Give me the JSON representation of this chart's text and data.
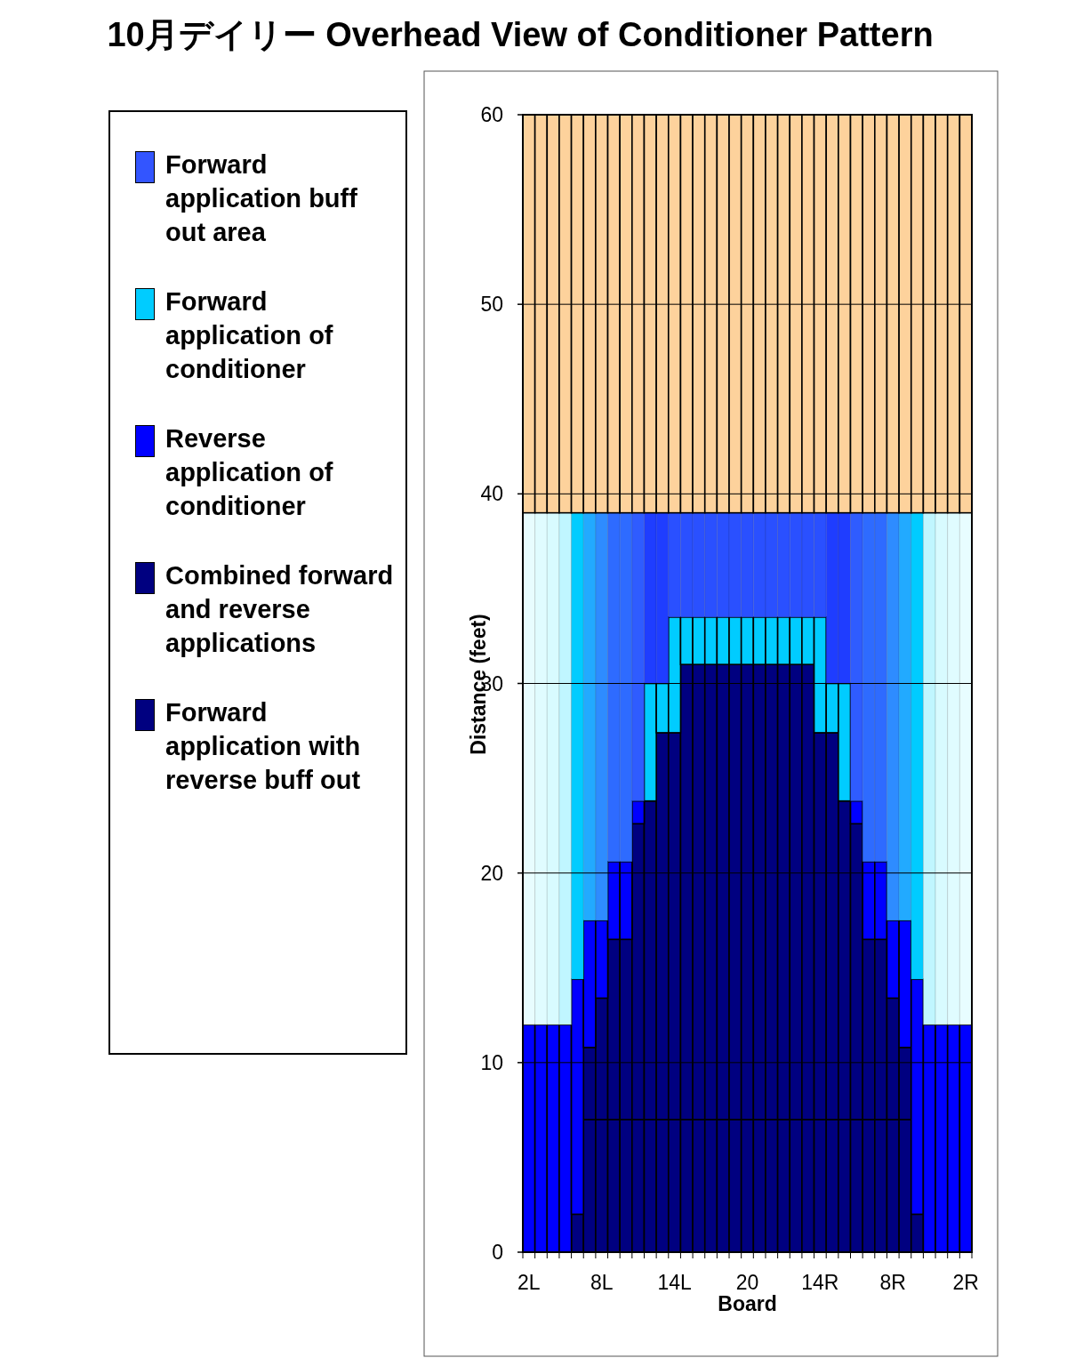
{
  "chart_data": {
    "type": "bar",
    "title": "10月デイリー Overhead View of Conditioner Pattern",
    "xlabel": "Board",
    "ylabel": "Distance (feet)",
    "stacked": true,
    "legend": "left",
    "grid": "y",
    "categories": [
      "2L",
      null,
      null,
      null,
      null,
      null,
      "8L",
      null,
      null,
      null,
      null,
      null,
      "14L",
      null,
      null,
      null,
      null,
      null,
      "20",
      null,
      null,
      null,
      null,
      null,
      "14R",
      null,
      null,
      null,
      null,
      null,
      "8R",
      null,
      null,
      null,
      null,
      null,
      "2R"
    ],
    "ylim": [
      0,
      60
    ],
    "yticks": [
      0,
      10,
      20,
      30,
      40,
      50,
      60
    ],
    "series": [
      {
        "name": "Forward application with reverse buff out",
        "color": "#000080",
        "values": [
          0,
          0,
          0,
          0,
          2,
          7,
          7,
          7,
          7,
          7,
          7,
          7,
          7,
          7,
          7,
          7,
          7,
          7,
          7,
          7,
          7,
          7,
          7,
          7,
          7,
          7,
          7,
          7,
          7,
          7,
          7,
          7,
          2,
          0,
          0,
          0,
          0
        ]
      },
      {
        "name": "Combined forward and reverse applications",
        "color": "#000080",
        "values": [
          0,
          0,
          0,
          0,
          0,
          3.8,
          6.4,
          9.5,
          9.5,
          15.6,
          16.8,
          20.4,
          20.4,
          24,
          24,
          24,
          24,
          24,
          24,
          24,
          24,
          24,
          24,
          24,
          20.4,
          20.4,
          16.8,
          15.6,
          9.5,
          9.5,
          6.4,
          3.8,
          0,
          0,
          0,
          0,
          0
        ]
      },
      {
        "name": "Reverse application of conditioner",
        "color": "#0000ff",
        "values": [
          12,
          12,
          12,
          12,
          12.4,
          6.7,
          4.1,
          4.1,
          4.1,
          1.2,
          0,
          0,
          0,
          0,
          0,
          0,
          0,
          0,
          0,
          0,
          0,
          0,
          0,
          0,
          0,
          0,
          0,
          1.2,
          4.1,
          4.1,
          4.1,
          6.7,
          12.4,
          12,
          12,
          12,
          12
        ]
      },
      {
        "name": "Forward application of conditioner",
        "color": "#00ccff",
        "values": [
          0,
          0,
          0,
          0,
          0,
          0,
          0,
          0,
          0,
          0,
          6.2,
          2.6,
          6.1,
          2.5,
          2.5,
          2.5,
          2.5,
          2.5,
          2.5,
          2.5,
          2.5,
          2.5,
          2.5,
          2.5,
          6.1,
          2.6,
          6.2,
          0,
          0,
          0,
          0,
          0,
          0,
          0,
          0,
          0,
          0
        ]
      },
      {
        "name": "Forward application buff out area",
        "color": "#3355ff",
        "colors": [
          "#e8fdff",
          "#e0fcff",
          "#d8fbff",
          "#c0f6ff",
          "#00ccff",
          "#22aaff",
          "#2e8cff",
          "#2e6bff",
          "#2e6bff",
          "#2f5cff",
          "#1f3dff",
          "#1f3dff",
          "#2a50ff",
          "#2a50ff",
          "#2a50ff",
          "#2a50ff",
          "#2a50ff",
          "#2a50ff",
          "#2a50ff",
          "#2a50ff",
          "#2a50ff",
          "#2a50ff",
          "#2a50ff",
          "#2a50ff",
          "#2a50ff",
          "#1f3dff",
          "#1f3dff",
          "#2f5cff",
          "#2e6bff",
          "#2e6bff",
          "#2e8cff",
          "#22aaff",
          "#00ccff",
          "#c0f6ff",
          "#d8fbff",
          "#e0fcff",
          "#e8fdff"
        ],
        "values": [
          27,
          27,
          27,
          27,
          24.6,
          21.5,
          21.5,
          18.4,
          18.4,
          15.2,
          9,
          9,
          5.5,
          5.5,
          5.5,
          5.5,
          5.5,
          5.5,
          5.5,
          5.5,
          5.5,
          5.5,
          5.5,
          5.5,
          5.5,
          9,
          9,
          15.2,
          18.4,
          18.4,
          21.5,
          21.5,
          24.6,
          27,
          27,
          27,
          27
        ]
      },
      {
        "color": "#fdd29c",
        "values": [
          21,
          21,
          21,
          21,
          21,
          21,
          21,
          21,
          21,
          21,
          21,
          21,
          21,
          21,
          21,
          21,
          21,
          21,
          21,
          21,
          21,
          21,
          21,
          21,
          21,
          21,
          21,
          21,
          21,
          21,
          21,
          21,
          21,
          21,
          21,
          21,
          21
        ]
      }
    ]
  }
}
